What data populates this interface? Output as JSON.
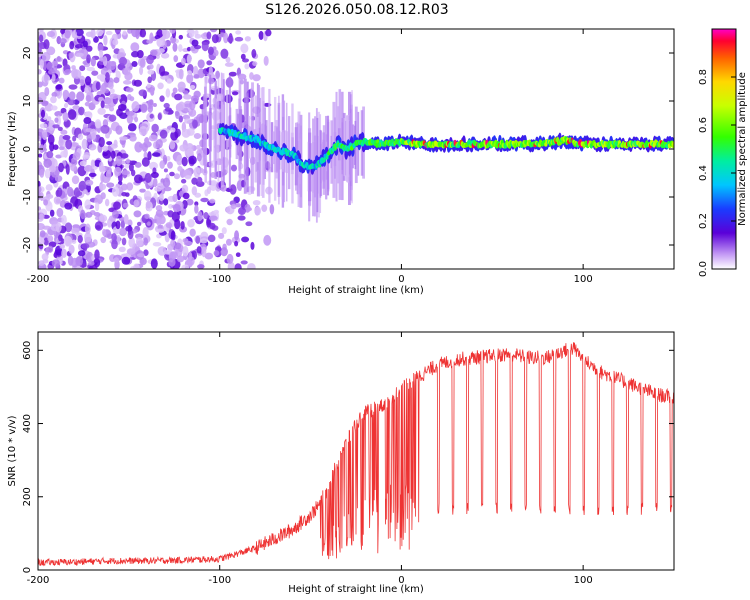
{
  "title": "S126.2026.050.08.12.R03",
  "chart_data": [
    {
      "type": "heatmap",
      "xlabel": "Height of straight line (km)",
      "ylabel": "Frequency (Hz)",
      "xlim": [
        -200,
        150
      ],
      "ylim": [
        -25,
        25
      ],
      "xticks": [
        -200,
        -100,
        0,
        100
      ],
      "yticks": [
        -20,
        -10,
        0,
        10,
        20
      ],
      "colorbar": {
        "label": "Normalized spectral amplitude",
        "range": [
          0,
          1
        ],
        "ticks": [
          0.0,
          0.2,
          0.4,
          0.6,
          0.8
        ]
      },
      "ridge": {
        "description": "frequency of peak spectral amplitude vs height",
        "x": [
          -100,
          -90,
          -80,
          -70,
          -60,
          -55,
          -50,
          -45,
          -40,
          -35,
          -30,
          -25,
          -20,
          -10,
          0,
          10,
          20,
          40,
          60,
          80,
          90,
          100,
          120,
          150
        ],
        "y": [
          4,
          3,
          2,
          0,
          -1,
          -3,
          -4,
          -3,
          -1,
          1,
          0,
          1,
          1.5,
          1,
          1.5,
          1,
          1,
          1,
          1,
          1.2,
          1.8,
          1,
          1,
          1
        ]
      }
    },
    {
      "type": "line",
      "xlabel": "Height of straight line (km)",
      "ylabel": "SNR (10 * v/v)",
      "xlim": [
        -200,
        150
      ],
      "ylim": [
        0,
        650
      ],
      "xticks": [
        -200,
        -100,
        0,
        100
      ],
      "yticks": [
        0,
        200,
        400,
        600
      ],
      "series": [
        {
          "name": "SNR",
          "color": "#ee3333",
          "x": [
            -200,
            -180,
            -160,
            -140,
            -120,
            -100,
            -90,
            -80,
            -70,
            -60,
            -50,
            -45,
            -40,
            -35,
            -30,
            -25,
            -20,
            -15,
            -10,
            -5,
            0,
            10,
            20,
            30,
            40,
            50,
            60,
            70,
            80,
            90,
            95,
            100,
            110,
            120,
            130,
            140,
            150
          ],
          "y": [
            20,
            22,
            25,
            25,
            27,
            30,
            45,
            60,
            85,
            110,
            150,
            180,
            230,
            300,
            350,
            400,
            430,
            440,
            450,
            470,
            500,
            530,
            560,
            575,
            580,
            585,
            590,
            580,
            580,
            600,
            605,
            575,
            540,
            520,
            500,
            480,
            470
          ]
        }
      ],
      "dropout": {
        "description": "periodic sharp dips of SNR",
        "floor": 160,
        "start": 20,
        "end": 150,
        "period": 8
      }
    }
  ]
}
